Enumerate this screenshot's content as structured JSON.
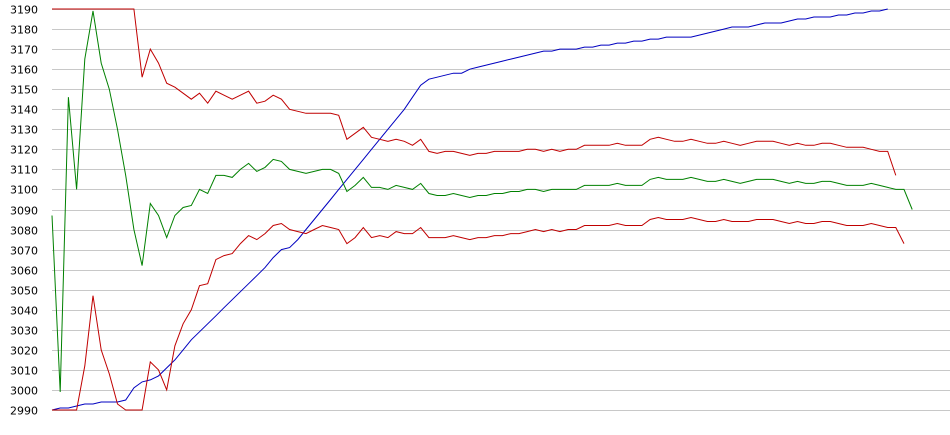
{
  "chart_data": {
    "type": "line",
    "title": "",
    "xlabel": "",
    "ylabel": "",
    "ylim": [
      2990,
      3190
    ],
    "xlim": [
      0,
      109
    ],
    "grid": "horizontal",
    "yticks": [
      "3190",
      "3180",
      "3170",
      "3160",
      "3150",
      "3140",
      "3130",
      "3120",
      "3110",
      "3100",
      "3090",
      "3080",
      "3070",
      "3060",
      "3050",
      "3040",
      "3030",
      "3020",
      "3010",
      "3000",
      "2990"
    ],
    "series": [
      {
        "color": "#0000c0",
        "values": [
          2990,
          2991,
          2991,
          2992,
          2993,
          2993,
          2994,
          2994,
          2994,
          2995,
          3001,
          3004,
          3005,
          3007,
          3011,
          3015,
          3020,
          3025,
          3029,
          3033,
          3037,
          3041,
          3045,
          3049,
          3053,
          3057,
          3061,
          3066,
          3070,
          3071,
          3075,
          3080,
          3085,
          3090,
          3095,
          3100,
          3105,
          3110,
          3115,
          3120,
          3125,
          3130,
          3135,
          3140,
          3146,
          3152,
          3155,
          3156,
          3157,
          3158,
          3158,
          3160,
          3161,
          3162,
          3163,
          3164,
          3165,
          3166,
          3167,
          3168,
          3169,
          3169,
          3170,
          3170,
          3170,
          3171,
          3171,
          3172,
          3172,
          3173,
          3173,
          3174,
          3174,
          3175,
          3175,
          3176,
          3176,
          3176,
          3176,
          3177,
          3178,
          3179,
          3180,
          3181,
          3181,
          3181,
          3182,
          3183,
          3183,
          3183,
          3184,
          3185,
          3185,
          3186,
          3186,
          3186,
          3187,
          3187,
          3188,
          3188,
          3189,
          3189,
          3190
        ]
      },
      {
        "color": "#c00000",
        "values": [
          3190,
          3190,
          3190,
          3190,
          3190,
          3190,
          3190,
          3190,
          3190,
          3190,
          3190,
          3156,
          3170,
          3163,
          3153,
          3151,
          3148,
          3145,
          3148,
          3143,
          3149,
          3147,
          3145,
          3147,
          3149,
          3143,
          3144,
          3147,
          3145,
          3140,
          3139,
          3138,
          3138,
          3138,
          3138,
          3137,
          3125,
          3128,
          3131,
          3126,
          3125,
          3124,
          3125,
          3124,
          3122,
          3125,
          3119,
          3118,
          3119,
          3119,
          3118,
          3117,
          3118,
          3118,
          3119,
          3119,
          3119,
          3119,
          3120,
          3120,
          3119,
          3120,
          3119,
          3120,
          3120,
          3122,
          3122,
          3122,
          3122,
          3123,
          3122,
          3122,
          3122,
          3125,
          3126,
          3125,
          3124,
          3124,
          3125,
          3124,
          3123,
          3123,
          3124,
          3123,
          3122,
          3123,
          3124,
          3124,
          3124,
          3123,
          3122,
          3123,
          3122,
          3122,
          3123,
          3123,
          3122,
          3121,
          3121,
          3121,
          3120,
          3119,
          3119,
          3107
        ]
      },
      {
        "color": "#008000",
        "values": [
          3087,
          2999,
          3146,
          3100,
          3165,
          3189,
          3163,
          3150,
          3130,
          3107,
          3080,
          3062,
          3093,
          3087,
          3076,
          3087,
          3091,
          3092,
          3100,
          3098,
          3107,
          3107,
          3106,
          3110,
          3113,
          3109,
          3111,
          3115,
          3114,
          3110,
          3109,
          3108,
          3109,
          3110,
          3110,
          3108,
          3099,
          3102,
          3106,
          3101,
          3101,
          3100,
          3102,
          3101,
          3100,
          3103,
          3098,
          3097,
          3097,
          3098,
          3097,
          3096,
          3097,
          3097,
          3098,
          3098,
          3099,
          3099,
          3100,
          3100,
          3099,
          3100,
          3100,
          3100,
          3100,
          3102,
          3102,
          3102,
          3102,
          3103,
          3102,
          3102,
          3102,
          3105,
          3106,
          3105,
          3105,
          3105,
          3106,
          3105,
          3104,
          3104,
          3105,
          3104,
          3103,
          3104,
          3105,
          3105,
          3105,
          3104,
          3103,
          3104,
          3103,
          3103,
          3104,
          3104,
          3103,
          3102,
          3102,
          3102,
          3103,
          3102,
          3101,
          3100,
          3100,
          3090
        ]
      },
      {
        "color": "#c00000",
        "values": [
          2990,
          2990,
          2990,
          2990,
          3012,
          3047,
          3020,
          3008,
          2993,
          2990,
          2990,
          2990,
          3014,
          3010,
          3000,
          3022,
          3033,
          3040,
          3052,
          3053,
          3065,
          3067,
          3068,
          3073,
          3077,
          3075,
          3078,
          3082,
          3083,
          3080,
          3079,
          3078,
          3080,
          3082,
          3081,
          3080,
          3073,
          3076,
          3081,
          3076,
          3077,
          3076,
          3079,
          3078,
          3078,
          3081,
          3076,
          3076,
          3076,
          3077,
          3076,
          3075,
          3076,
          3076,
          3077,
          3077,
          3078,
          3078,
          3079,
          3080,
          3079,
          3080,
          3079,
          3080,
          3080,
          3082,
          3082,
          3082,
          3082,
          3083,
          3082,
          3082,
          3082,
          3085,
          3086,
          3085,
          3085,
          3085,
          3086,
          3085,
          3084,
          3084,
          3085,
          3084,
          3084,
          3084,
          3085,
          3085,
          3085,
          3084,
          3083,
          3084,
          3083,
          3083,
          3084,
          3084,
          3083,
          3082,
          3082,
          3082,
          3083,
          3082,
          3081,
          3081,
          3073
        ]
      }
    ]
  }
}
